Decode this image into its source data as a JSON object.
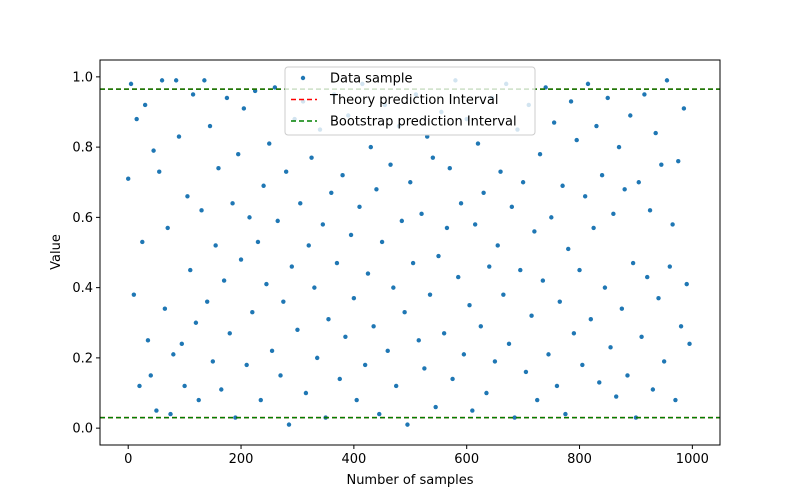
{
  "chart_data": {
    "type": "scatter",
    "xlabel": "Number of samples",
    "ylabel": "Value",
    "xlim": [
      -50,
      1049
    ],
    "ylim": [
      -0.048,
      1.048
    ],
    "xticks": [
      0,
      200,
      400,
      600,
      800,
      1000
    ],
    "yticks": [
      {
        "value": 0,
        "label": "0.0"
      },
      0.2,
      0.4,
      0.6,
      0.8,
      {
        "value": 1,
        "label": "1.0"
      }
    ],
    "legend": "upper center",
    "series": [
      {
        "name": "Data sample",
        "color": "#1f77b4",
        "x": [
          0,
          5,
          10,
          15,
          20,
          25,
          30,
          35,
          40,
          45,
          50,
          55,
          60,
          65,
          70,
          75,
          80,
          85,
          90,
          95,
          100,
          105,
          110,
          115,
          120,
          125,
          130,
          135,
          140,
          145,
          150,
          155,
          160,
          165,
          170,
          175,
          180,
          185,
          190,
          195,
          200,
          205,
          210,
          215,
          220,
          225,
          230,
          235,
          240,
          245,
          250,
          255,
          260,
          265,
          270,
          275,
          280,
          285,
          290,
          295,
          300,
          305,
          310,
          315,
          320,
          325,
          330,
          335,
          340,
          345,
          350,
          355,
          360,
          365,
          370,
          375,
          380,
          385,
          390,
          395,
          400,
          405,
          410,
          415,
          420,
          425,
          430,
          435,
          440,
          445,
          450,
          455,
          460,
          465,
          470,
          475,
          480,
          485,
          490,
          495,
          500,
          505,
          510,
          515,
          520,
          525,
          530,
          535,
          540,
          545,
          550,
          555,
          560,
          565,
          570,
          575,
          580,
          585,
          590,
          595,
          600,
          605,
          610,
          615,
          620,
          625,
          630,
          635,
          640,
          645,
          650,
          655,
          660,
          665,
          670,
          675,
          680,
          685,
          690,
          695,
          700,
          705,
          710,
          715,
          720,
          725,
          730,
          735,
          740,
          745,
          750,
          755,
          760,
          765,
          770,
          775,
          780,
          785,
          790,
          795,
          800,
          805,
          810,
          815,
          820,
          825,
          830,
          835,
          840,
          845,
          850,
          855,
          860,
          865,
          870,
          875,
          880,
          885,
          890,
          895,
          900,
          905,
          910,
          915,
          920,
          925,
          930,
          935,
          940,
          945,
          950,
          955,
          960,
          965,
          970,
          975,
          980,
          985,
          990,
          995
        ],
        "values": [
          0.71,
          0.98,
          0.38,
          0.88,
          0.12,
          0.53,
          0.92,
          0.25,
          0.15,
          0.79,
          0.05,
          0.73,
          0.99,
          0.34,
          0.57,
          0.04,
          0.21,
          0.99,
          0.83,
          0.24,
          0.12,
          0.66,
          0.45,
          0.95,
          0.3,
          0.08,
          0.62,
          0.99,
          0.36,
          0.86,
          0.19,
          0.52,
          0.74,
          0.11,
          0.42,
          0.94,
          0.27,
          0.64,
          0.03,
          0.78,
          0.48,
          0.91,
          0.18,
          0.6,
          0.33,
          0.96,
          0.53,
          0.08,
          0.69,
          0.41,
          0.81,
          0.22,
          0.97,
          0.59,
          0.15,
          0.36,
          0.73,
          0.01,
          0.46,
          0.88,
          0.28,
          0.64,
          0.93,
          0.1,
          0.52,
          0.77,
          0.4,
          0.2,
          0.85,
          0.58,
          0.03,
          0.31,
          0.67,
          0.95,
          0.47,
          0.14,
          0.72,
          0.26,
          0.89,
          0.55,
          0.37,
          0.08,
          0.63,
          0.98,
          0.18,
          0.44,
          0.8,
          0.29,
          0.68,
          0.04,
          0.53,
          0.92,
          0.22,
          0.75,
          0.4,
          0.12,
          0.86,
          0.59,
          0.33,
          0.01,
          0.7,
          0.47,
          0.95,
          0.25,
          0.61,
          0.17,
          0.83,
          0.38,
          0.77,
          0.06,
          0.49,
          0.9,
          0.27,
          0.57,
          0.74,
          0.14,
          0.99,
          0.43,
          0.64,
          0.21,
          0.88,
          0.35,
          0.05,
          0.58,
          0.81,
          0.29,
          0.67,
          0.1,
          0.46,
          0.94,
          0.19,
          0.52,
          0.73,
          0.38,
          0.98,
          0.24,
          0.63,
          0.03,
          0.85,
          0.45,
          0.7,
          0.16,
          0.92,
          0.32,
          0.56,
          0.08,
          0.78,
          0.42,
          0.97,
          0.21,
          0.6,
          0.87,
          0.12,
          0.36,
          0.69,
          0.04,
          0.51,
          0.93,
          0.27,
          0.82,
          0.45,
          0.18,
          0.66,
          0.98,
          0.31,
          0.57,
          0.86,
          0.13,
          0.72,
          0.4,
          0.94,
          0.23,
          0.61,
          0.09,
          0.8,
          0.34,
          0.68,
          0.15,
          0.89,
          0.47,
          0.03,
          0.7,
          0.26,
          0.95,
          0.43,
          0.62,
          0.11,
          0.84,
          0.37,
          0.75,
          0.19,
          0.99,
          0.46,
          0.58,
          0.08,
          0.76,
          0.29,
          0.91,
          0.41,
          0.24
        ]
      },
      {
        "name": "Theory prediction Interval",
        "color": "#ff0000",
        "values": [
          0.03,
          0.965
        ]
      },
      {
        "name": "Bootstrap prediction Interval",
        "color": "#008000",
        "values": [
          0.03,
          0.965
        ]
      }
    ]
  }
}
